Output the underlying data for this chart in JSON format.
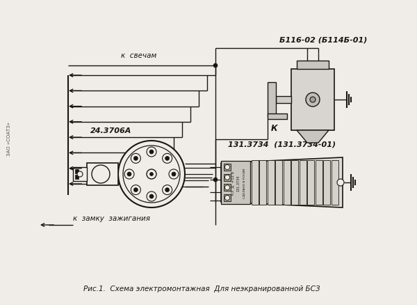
{
  "bg_color": "#f0ede8",
  "line_color": "#1a1510",
  "title": "Рис.1.  Схема электромонтажная  Для неэкранированной БСЗ",
  "label_svecham": "к  свечам",
  "label_zamku": "к  замку  зажигания",
  "label_distributor": "24.3706А",
  "label_coil": "131.3734  (131.3734-01)",
  "label_condenser": "Б116-02 (Б114Б-01)",
  "label_k": "К",
  "label_zao": "ЗАО «СОАТЗ»",
  "fig_width": 6.0,
  "fig_height": 4.39,
  "dpi": 100
}
